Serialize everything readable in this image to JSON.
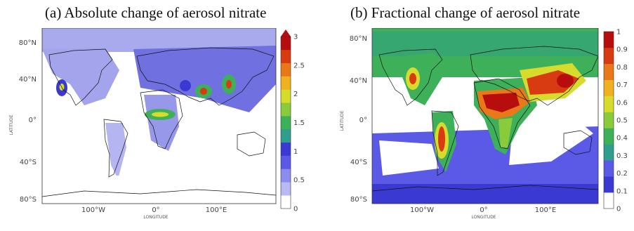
{
  "panels": [
    {
      "id": "a",
      "title": "(a) Absolute change of aerosol nitrate",
      "ylabel": "LATITUDE",
      "xlabel": "LONGITUDE",
      "lat_ticks": [
        "80°N",
        "40°N",
        "0°",
        "40°S",
        "80°S"
      ],
      "lon_ticks": [
        "100°W",
        "0°",
        "100°E"
      ],
      "colorbar_ticks": [
        "3",
        "2.5",
        "2",
        "1.5",
        "1",
        "0.5",
        "0"
      ],
      "colorbar_range": [
        0,
        3
      ],
      "colorbar_colors": [
        "#ffffff",
        "#b9b9f4",
        "#8c8cec",
        "#5a5ae6",
        "#3a3ad2",
        "#2f9e8e",
        "#3fb05a",
        "#8acb3c",
        "#d7dc2c",
        "#f0b020",
        "#e87818",
        "#d83a12",
        "#b80d0d"
      ]
    },
    {
      "id": "b",
      "title": "(b) Fractional change of aerosol nitrate",
      "ylabel": "LATITUDE",
      "xlabel": "LONGITUDE",
      "lat_ticks": [
        "80°N",
        "40°N",
        "0°",
        "40°S",
        "80°S"
      ],
      "lon_ticks": [
        "100°W",
        "0°",
        "100°E"
      ],
      "colorbar_ticks": [
        "1",
        "0.9",
        "0.8",
        "0.7",
        "0.6",
        "0.5",
        "0.4",
        "0.3",
        "0.2",
        "0.1",
        "0"
      ],
      "colorbar_range": [
        0,
        1
      ],
      "colorbar_colors": [
        "#ffffff",
        "#3a3ad2",
        "#5a5ae6",
        "#2f9e8e",
        "#3fb05a",
        "#8acb3c",
        "#d7dc2c",
        "#f0b020",
        "#e87818",
        "#d83a12",
        "#b80d0d"
      ]
    }
  ]
}
